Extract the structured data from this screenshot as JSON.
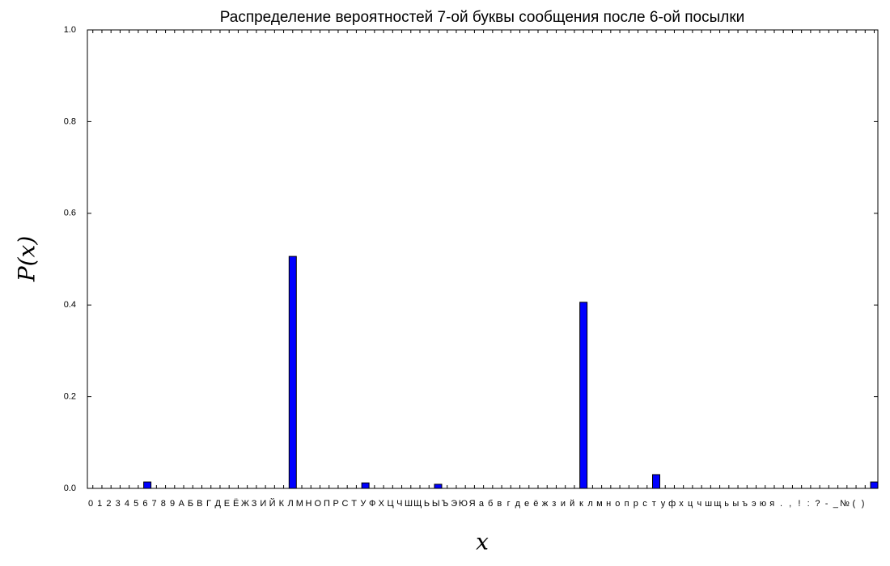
{
  "chart_data": {
    "type": "bar",
    "title": "Распределение вероятностей 7-ой буквы сообщения после 6-ой посылки",
    "x_label": "x",
    "y_label": "P(x)",
    "categories": [
      "0",
      "1",
      "2",
      "3",
      "4",
      "5",
      "6",
      "7",
      "8",
      "9",
      "А",
      "Б",
      "В",
      "Г",
      "Д",
      "Е",
      "Ё",
      "Ж",
      "З",
      "И",
      "Й",
      "К",
      "Л",
      "М",
      "Н",
      "О",
      "П",
      "Р",
      "С",
      "Т",
      "У",
      "Ф",
      "Х",
      "Ц",
      "Ч",
      "Ш",
      "Щ",
      "Ь",
      "Ы",
      "Ъ",
      "Э",
      "Ю",
      "Я",
      "а",
      "б",
      "в",
      "г",
      "д",
      "е",
      "ё",
      "ж",
      "з",
      "и",
      "й",
      "к",
      "л",
      "м",
      "н",
      "о",
      "п",
      "р",
      "с",
      "т",
      "у",
      "ф",
      "х",
      "ц",
      "ч",
      "ш",
      "щ",
      "ь",
      "ы",
      "ъ",
      "э",
      "ю",
      "я",
      ".",
      ",",
      "!",
      ":",
      "?",
      "-",
      "_",
      "№",
      "(",
      ")",
      null
    ],
    "values": [
      0,
      0,
      0,
      0,
      0,
      0,
      0.014,
      0,
      0,
      0,
      0,
      0,
      0,
      0,
      0,
      0,
      0,
      0,
      0,
      0,
      0,
      0,
      0.506,
      0,
      0,
      0,
      0,
      0,
      0,
      0,
      0.012,
      0,
      0,
      0,
      0,
      0,
      0,
      0,
      0.009,
      0,
      0,
      0,
      0,
      0,
      0,
      0,
      0,
      0,
      0,
      0,
      0,
      0,
      0,
      0,
      0.406,
      0,
      0,
      0,
      0,
      0,
      0,
      0,
      0.03,
      0,
      0,
      0,
      0,
      0,
      0,
      0,
      0,
      0,
      0,
      0,
      0,
      0,
      0,
      0,
      0,
      0,
      0,
      0,
      0,
      0,
      0,
      0,
      0.014
    ],
    "color": "#0000ff",
    "ylim": [
      0,
      1
    ],
    "yticks": [
      {
        "value": 0,
        "label": "0.0"
      },
      0.2,
      0.4,
      0.6,
      0.8,
      {
        "value": 1,
        "label": "1.0"
      }
    ]
  }
}
